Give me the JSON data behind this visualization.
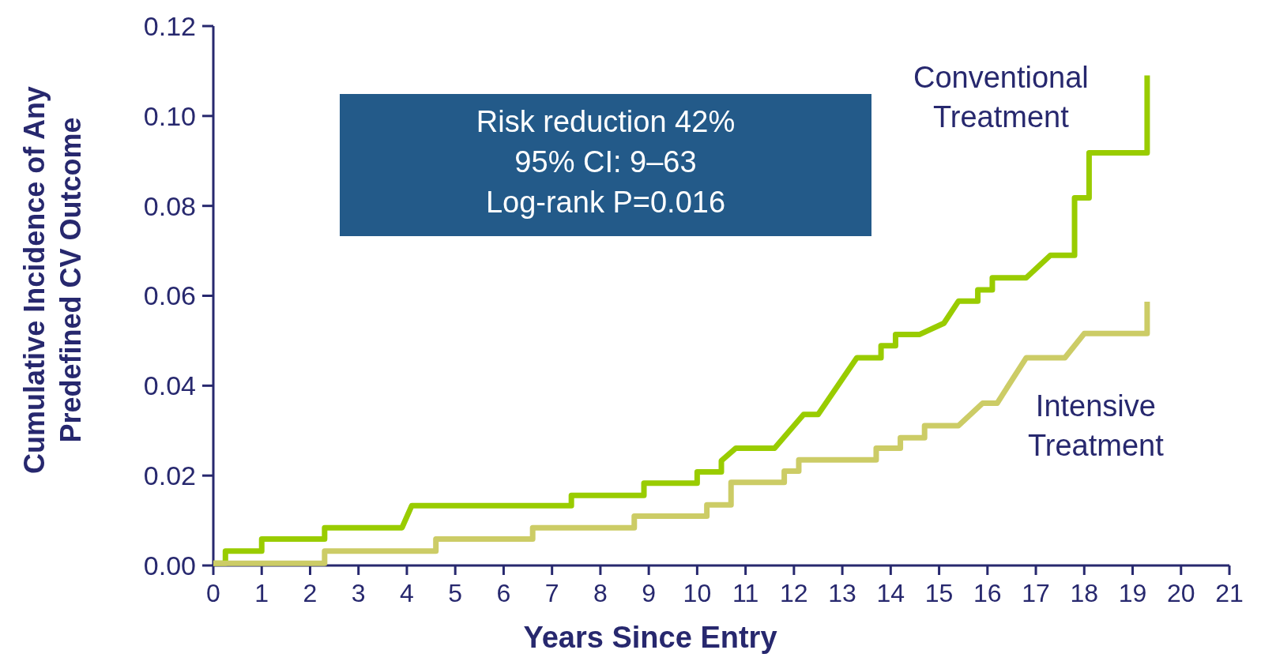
{
  "chart_data": {
    "type": "line",
    "xlabel": "Years Since Entry",
    "ylabel": "Cumulative Incidence of Any\nPredefined CV Outcome",
    "xlim": [
      0,
      21
    ],
    "xticks": [
      0,
      1,
      2,
      3,
      4,
      5,
      6,
      7,
      8,
      9,
      10,
      11,
      12,
      13,
      14,
      15,
      16,
      17,
      18,
      19,
      20,
      21
    ],
    "ylim": [
      0,
      0.12
    ],
    "yticks": [
      {
        "value": 0,
        "label": "0.00"
      },
      {
        "value": 0.02,
        "label": "0.02"
      },
      {
        "value": 0.04,
        "label": "0.04"
      },
      {
        "value": 0.06,
        "label": "0.06"
      },
      {
        "value": 0.08,
        "label": "0.08"
      },
      {
        "value": 0.1,
        "label": "0.10"
      },
      {
        "value": 0.12,
        "label": "0.12"
      }
    ],
    "grid": false,
    "legend": false,
    "line_style": "solid",
    "annotations": [
      "Risk reduction 42%\n95% CI: 9–63\nLog-rank P=0.016"
    ],
    "series": [
      {
        "name": "Conventional Treatment",
        "color": "#99cc00",
        "x": [
          0,
          0.25,
          0.25,
          1,
          1,
          2.3,
          2.3,
          3.9,
          4.1,
          7.4,
          7.4,
          8.9,
          8.9,
          10,
          10,
          10.5,
          10.5,
          10.8,
          11.6,
          12.2,
          12.5,
          13.3,
          13.8,
          13.8,
          14.1,
          14.1,
          14.6,
          15.1,
          15.4,
          15.8,
          15.8,
          16.1,
          16.1,
          16.8,
          17.3,
          17.8,
          17.8,
          18.1,
          18.1,
          19.3,
          19.3
        ],
        "values": [
          0.0005,
          0.0005,
          0.0032,
          0.0032,
          0.0059,
          0.0059,
          0.0084,
          0.0084,
          0.0133,
          0.0133,
          0.0156,
          0.0156,
          0.0183,
          0.0183,
          0.0208,
          0.0208,
          0.0233,
          0.0261,
          0.0261,
          0.0336,
          0.0336,
          0.0462,
          0.0462,
          0.0489,
          0.0489,
          0.0514,
          0.0514,
          0.0539,
          0.0588,
          0.0588,
          0.0613,
          0.0613,
          0.064,
          0.064,
          0.069,
          0.069,
          0.0818,
          0.0818,
          0.0918,
          0.0918,
          0.109
        ]
      },
      {
        "name": "Intensive Treatment",
        "color": "#cccc66",
        "x": [
          0,
          2.3,
          2.3,
          4.6,
          4.6,
          6.6,
          6.6,
          8.7,
          8.7,
          10.2,
          10.2,
          10.7,
          10.7,
          11.8,
          11.8,
          12.1,
          12.1,
          13.7,
          13.7,
          14.2,
          14.2,
          14.7,
          14.7,
          15.4,
          15.9,
          16.2,
          16.8,
          17.6,
          18.0,
          19.3,
          19.3
        ],
        "values": [
          0.0005,
          0.0005,
          0.0032,
          0.0032,
          0.0059,
          0.0059,
          0.0084,
          0.0084,
          0.011,
          0.011,
          0.0135,
          0.0135,
          0.0185,
          0.0185,
          0.021,
          0.021,
          0.0235,
          0.0235,
          0.0261,
          0.0261,
          0.0284,
          0.0284,
          0.0311,
          0.0311,
          0.0361,
          0.0361,
          0.0462,
          0.0462,
          0.0516,
          0.0516,
          0.0587
        ]
      }
    ]
  }
}
